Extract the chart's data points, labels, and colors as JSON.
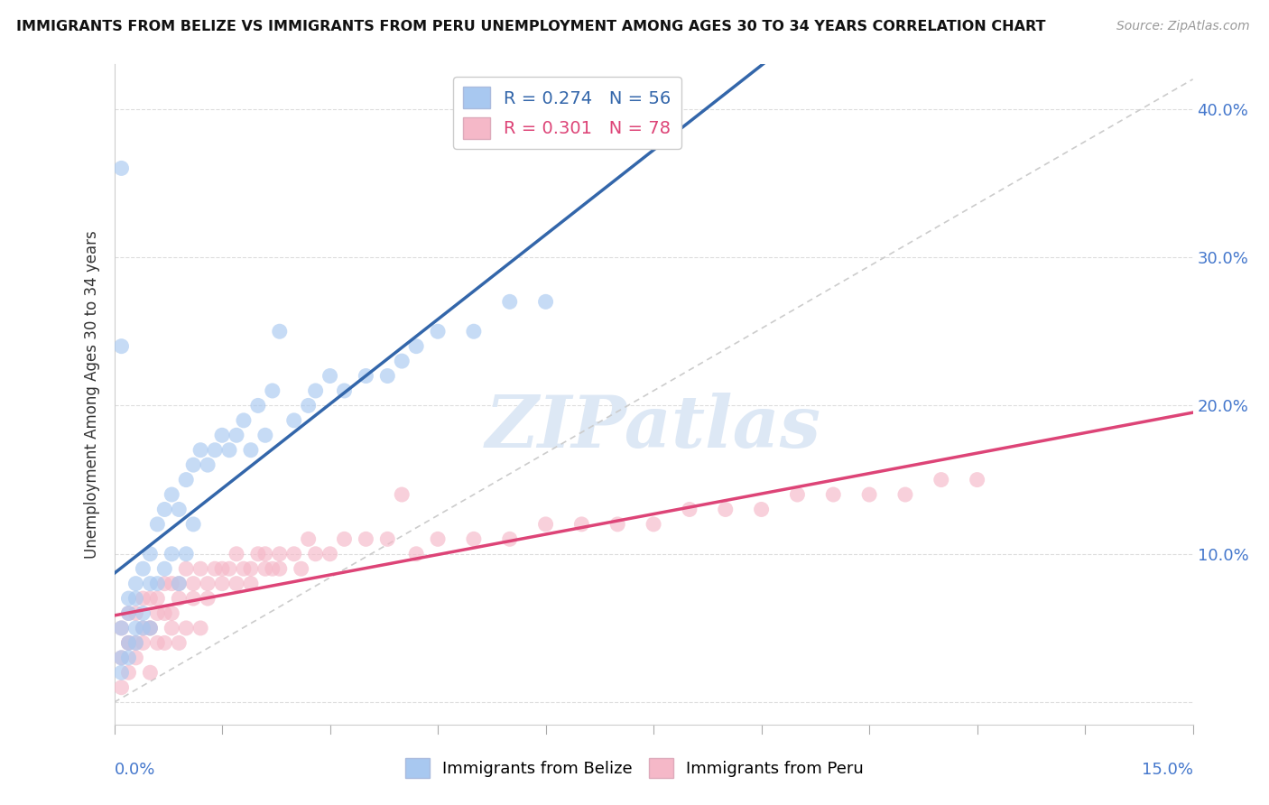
{
  "title": "IMMIGRANTS FROM BELIZE VS IMMIGRANTS FROM PERU UNEMPLOYMENT AMONG AGES 30 TO 34 YEARS CORRELATION CHART",
  "source": "Source: ZipAtlas.com",
  "ylabel": "Unemployment Among Ages 30 to 34 years",
  "y_tick_values": [
    0.0,
    0.1,
    0.2,
    0.3,
    0.4
  ],
  "y_tick_labels": [
    "",
    "10.0%",
    "20.0%",
    "30.0%",
    "40.0%"
  ],
  "xlim": [
    0.0,
    0.15
  ],
  "ylim": [
    -0.015,
    0.43
  ],
  "belize_R": 0.274,
  "belize_N": 56,
  "peru_R": 0.301,
  "peru_N": 78,
  "belize_color": "#a8c8f0",
  "peru_color": "#f5b8c8",
  "belize_line_color": "#3366aa",
  "peru_line_color": "#dd4477",
  "trend_line_color": "#cccccc",
  "watermark_color": "#dde8f5",
  "belize_x": [
    0.001,
    0.001,
    0.001,
    0.002,
    0.002,
    0.002,
    0.003,
    0.003,
    0.003,
    0.004,
    0.004,
    0.005,
    0.005,
    0.005,
    0.006,
    0.006,
    0.007,
    0.007,
    0.008,
    0.008,
    0.009,
    0.009,
    0.01,
    0.01,
    0.011,
    0.011,
    0.012,
    0.013,
    0.014,
    0.015,
    0.016,
    0.017,
    0.018,
    0.019,
    0.02,
    0.021,
    0.022,
    0.023,
    0.025,
    0.027,
    0.028,
    0.03,
    0.032,
    0.035,
    0.038,
    0.04,
    0.042,
    0.045,
    0.05,
    0.055,
    0.06,
    0.001,
    0.001,
    0.002,
    0.003,
    0.004
  ],
  "belize_y": [
    0.36,
    0.05,
    0.03,
    0.07,
    0.06,
    0.04,
    0.08,
    0.07,
    0.05,
    0.09,
    0.06,
    0.1,
    0.08,
    0.05,
    0.12,
    0.08,
    0.13,
    0.09,
    0.14,
    0.1,
    0.13,
    0.08,
    0.15,
    0.1,
    0.16,
    0.12,
    0.17,
    0.16,
    0.17,
    0.18,
    0.17,
    0.18,
    0.19,
    0.17,
    0.2,
    0.18,
    0.21,
    0.25,
    0.19,
    0.2,
    0.21,
    0.22,
    0.21,
    0.22,
    0.22,
    0.23,
    0.24,
    0.25,
    0.25,
    0.27,
    0.27,
    0.24,
    0.02,
    0.03,
    0.04,
    0.05
  ],
  "peru_x": [
    0.001,
    0.001,
    0.001,
    0.002,
    0.002,
    0.002,
    0.003,
    0.003,
    0.004,
    0.004,
    0.005,
    0.005,
    0.005,
    0.006,
    0.006,
    0.007,
    0.007,
    0.008,
    0.008,
    0.009,
    0.009,
    0.01,
    0.01,
    0.011,
    0.012,
    0.012,
    0.013,
    0.014,
    0.015,
    0.016,
    0.017,
    0.018,
    0.019,
    0.02,
    0.021,
    0.022,
    0.023,
    0.025,
    0.027,
    0.028,
    0.03,
    0.032,
    0.035,
    0.038,
    0.04,
    0.042,
    0.045,
    0.05,
    0.055,
    0.06,
    0.065,
    0.07,
    0.075,
    0.08,
    0.085,
    0.09,
    0.095,
    0.1,
    0.105,
    0.11,
    0.115,
    0.12,
    0.002,
    0.003,
    0.004,
    0.005,
    0.006,
    0.007,
    0.008,
    0.009,
    0.011,
    0.013,
    0.015,
    0.017,
    0.019,
    0.021,
    0.023,
    0.026
  ],
  "peru_y": [
    0.05,
    0.03,
    0.01,
    0.06,
    0.04,
    0.02,
    0.06,
    0.03,
    0.07,
    0.04,
    0.07,
    0.05,
    0.02,
    0.07,
    0.04,
    0.08,
    0.04,
    0.08,
    0.05,
    0.08,
    0.04,
    0.09,
    0.05,
    0.08,
    0.09,
    0.05,
    0.08,
    0.09,
    0.09,
    0.09,
    0.1,
    0.09,
    0.09,
    0.1,
    0.1,
    0.09,
    0.1,
    0.1,
    0.11,
    0.1,
    0.1,
    0.11,
    0.11,
    0.11,
    0.14,
    0.1,
    0.11,
    0.11,
    0.11,
    0.12,
    0.12,
    0.12,
    0.12,
    0.13,
    0.13,
    0.13,
    0.14,
    0.14,
    0.14,
    0.14,
    0.15,
    0.15,
    0.04,
    0.04,
    0.05,
    0.05,
    0.06,
    0.06,
    0.06,
    0.07,
    0.07,
    0.07,
    0.08,
    0.08,
    0.08,
    0.09,
    0.09,
    0.09
  ]
}
